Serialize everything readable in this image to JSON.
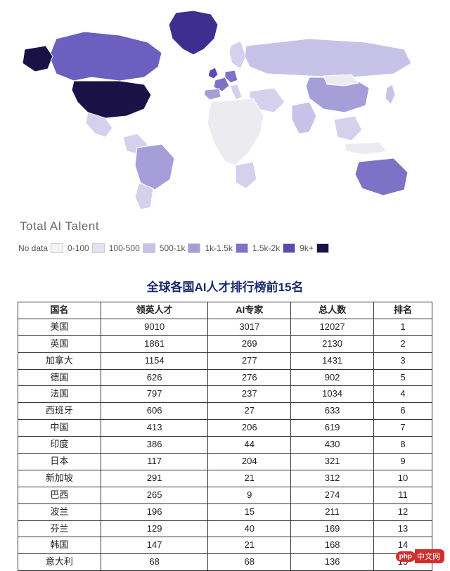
{
  "map": {
    "title": "Total AI Talent",
    "background_color": "#ffffff",
    "stroke_color": "#ffffff",
    "legend": [
      {
        "label": "No data",
        "color": "#f3f3f6"
      },
      {
        "label": "0-100",
        "color": "#e3e1f2"
      },
      {
        "label": "100-500",
        "color": "#c7c2e8"
      },
      {
        "label": "500-1k",
        "color": "#a69ed8"
      },
      {
        "label": "1k-1.5k",
        "color": "#7e72c6"
      },
      {
        "label": "1.5k-2k",
        "color": "#5a4bb0"
      },
      {
        "label": "9k+",
        "color": "#1a1147"
      }
    ],
    "countries": {
      "usa": "#1a1147",
      "uk": "#5a4bb0",
      "canada": "#6d5fbf",
      "germany": "#7e72c6",
      "france": "#7e72c6",
      "spain": "#a69ed8",
      "china": "#a69ed8",
      "india": "#c7c2e8",
      "japan": "#c7c2e8",
      "australia": "#7e72c6",
      "brazil": "#a69ed8",
      "russia": "#c7c2e8",
      "greenland": "#3d2e8f",
      "mexico": "#d5d1ed",
      "argentina": "#d5d1ed",
      "nodata": "#ececf0",
      "light": "#d5d1ed"
    }
  },
  "table": {
    "title": "全球各国AI人才排行榜前15名",
    "title_color": "#1b2b6b",
    "title_fontsize": 17,
    "border_color": "#333333",
    "cell_fontsize": 13,
    "columns": [
      "国名",
      "领英人才",
      "AI专家",
      "总人数",
      "排名"
    ],
    "rows": [
      [
        "美国",
        "9010",
        "3017",
        "12027",
        "1"
      ],
      [
        "英国",
        "1861",
        "269",
        "2130",
        "2"
      ],
      [
        "加拿大",
        "1154",
        "277",
        "1431",
        "3"
      ],
      [
        "德国",
        "626",
        "276",
        "902",
        "5"
      ],
      [
        "法国",
        "797",
        "237",
        "1034",
        "4"
      ],
      [
        "西班牙",
        "606",
        "27",
        "633",
        "6"
      ],
      [
        "中国",
        "413",
        "206",
        "619",
        "7"
      ],
      [
        "印度",
        "386",
        "44",
        "430",
        "8"
      ],
      [
        "日本",
        "117",
        "204",
        "321",
        "9"
      ],
      [
        "新加坡",
        "291",
        "21",
        "312",
        "10"
      ],
      [
        "巴西",
        "265",
        "9",
        "274",
        "11"
      ],
      [
        "波兰",
        "196",
        "15",
        "211",
        "12"
      ],
      [
        "芬兰",
        "129",
        "40",
        "169",
        "13"
      ],
      [
        "韩国",
        "147",
        "21",
        "168",
        "14"
      ],
      [
        "意大利",
        "68",
        "68",
        "136",
        "15"
      ]
    ]
  },
  "footer": {
    "badge": "php",
    "text": "中文网"
  }
}
